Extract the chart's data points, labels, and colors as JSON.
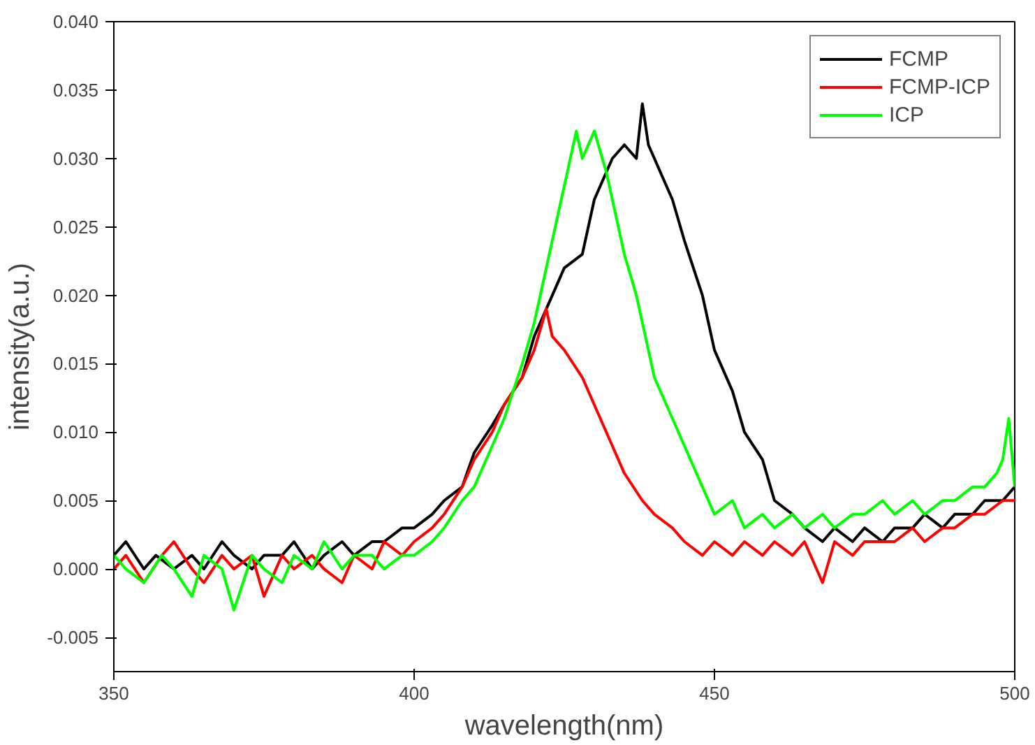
{
  "chart_data": {
    "type": "line",
    "xlabel": "wavelength(nm)",
    "ylabel": "intensity(a.u.)",
    "xlim": [
      350,
      500
    ],
    "ylim": [
      -0.0075,
      0.04
    ],
    "xticks": [
      350,
      400,
      450,
      500
    ],
    "yticks": [
      {
        "value": -0.005,
        "label": "-0.005"
      },
      {
        "value": 0,
        "label": "0.000"
      },
      {
        "value": 0.005,
        "label": "0.005"
      },
      {
        "value": 0.01,
        "label": "0.010"
      },
      {
        "value": 0.015,
        "label": "0.015"
      },
      {
        "value": 0.02,
        "label": "0.020"
      },
      {
        "value": 0.025,
        "label": "0.025"
      },
      {
        "value": 0.03,
        "label": "0.030"
      },
      {
        "value": 0.035,
        "label": "0.035"
      },
      {
        "value": 0.04,
        "label": "0.040"
      }
    ],
    "legend": "top right",
    "grid": false,
    "series": [
      {
        "name": "FCMP",
        "color": "#000000",
        "x": [
          350,
          352,
          355,
          357,
          360,
          363,
          365,
          368,
          370,
          373,
          375,
          378,
          380,
          383,
          385,
          388,
          390,
          393,
          395,
          398,
          400,
          403,
          405,
          408,
          410,
          413,
          415,
          418,
          420,
          423,
          425,
          428,
          430,
          433,
          435,
          437,
          438,
          439,
          440,
          443,
          445,
          448,
          450,
          453,
          455,
          458,
          460,
          463,
          465,
          468,
          470,
          473,
          475,
          478,
          480,
          483,
          485,
          488,
          490,
          493,
          495,
          498,
          500
        ],
        "values": [
          0.001,
          0.002,
          0.0,
          0.001,
          0.0,
          0.001,
          0.0,
          0.002,
          0.001,
          0.0,
          0.001,
          0.001,
          0.002,
          0.0,
          0.001,
          0.002,
          0.001,
          0.002,
          0.002,
          0.003,
          0.003,
          0.004,
          0.005,
          0.006,
          0.0085,
          0.0105,
          0.012,
          0.014,
          0.017,
          0.02,
          0.022,
          0.023,
          0.027,
          0.03,
          0.031,
          0.03,
          0.034,
          0.031,
          0.03,
          0.027,
          0.024,
          0.02,
          0.016,
          0.013,
          0.01,
          0.008,
          0.005,
          0.004,
          0.003,
          0.002,
          0.003,
          0.002,
          0.003,
          0.002,
          0.003,
          0.003,
          0.004,
          0.003,
          0.004,
          0.004,
          0.005,
          0.005,
          0.006
        ]
      },
      {
        "name": "FCMP-ICP",
        "color": "#ff0000",
        "x": [
          350,
          352,
          355,
          358,
          360,
          363,
          365,
          368,
          370,
          373,
          375,
          378,
          380,
          383,
          385,
          388,
          390,
          393,
          395,
          398,
          400,
          403,
          405,
          408,
          410,
          413,
          415,
          418,
          420,
          422,
          423,
          425,
          428,
          430,
          433,
          435,
          438,
          440,
          443,
          445,
          448,
          450,
          453,
          455,
          458,
          460,
          463,
          465,
          468,
          470,
          473,
          475,
          478,
          480,
          483,
          485,
          488,
          490,
          493,
          495,
          498,
          500
        ],
        "values": [
          0.0,
          0.001,
          -0.001,
          0.001,
          0.002,
          0.0,
          -0.001,
          0.001,
          0.0,
          0.001,
          -0.002,
          0.001,
          0.0,
          0.001,
          0.0,
          -0.001,
          0.001,
          0.0,
          0.002,
          0.001,
          0.002,
          0.003,
          0.004,
          0.006,
          0.008,
          0.01,
          0.012,
          0.014,
          0.016,
          0.019,
          0.017,
          0.016,
          0.014,
          0.012,
          0.009,
          0.007,
          0.005,
          0.004,
          0.003,
          0.002,
          0.001,
          0.002,
          0.001,
          0.002,
          0.001,
          0.002,
          0.001,
          0.002,
          -0.001,
          0.002,
          0.001,
          0.002,
          0.002,
          0.002,
          0.003,
          0.002,
          0.003,
          0.003,
          0.004,
          0.004,
          0.005,
          0.005
        ]
      },
      {
        "name": "ICP",
        "color": "#00ff00",
        "x": [
          350,
          352,
          355,
          358,
          360,
          363,
          365,
          368,
          370,
          373,
          375,
          378,
          380,
          383,
          385,
          388,
          390,
          393,
          395,
          398,
          400,
          403,
          405,
          408,
          410,
          413,
          415,
          418,
          420,
          423,
          425,
          427,
          428,
          430,
          432,
          433,
          435,
          437,
          440,
          443,
          445,
          448,
          450,
          453,
          455,
          458,
          460,
          463,
          465,
          468,
          470,
          473,
          475,
          478,
          480,
          483,
          485,
          488,
          490,
          493,
          495,
          497,
          498,
          499,
          500
        ],
        "values": [
          0.001,
          0.0,
          -0.001,
          0.001,
          0.0,
          -0.002,
          0.001,
          0.0,
          -0.003,
          0.001,
          0.0,
          -0.001,
          0.001,
          0.0,
          0.002,
          0.0,
          0.001,
          0.001,
          0.0,
          0.001,
          0.001,
          0.002,
          0.003,
          0.005,
          0.006,
          0.009,
          0.011,
          0.015,
          0.018,
          0.024,
          0.028,
          0.032,
          0.03,
          0.032,
          0.029,
          0.027,
          0.023,
          0.02,
          0.014,
          0.011,
          0.009,
          0.006,
          0.004,
          0.005,
          0.003,
          0.004,
          0.003,
          0.004,
          0.003,
          0.004,
          0.003,
          0.004,
          0.004,
          0.005,
          0.004,
          0.005,
          0.004,
          0.005,
          0.005,
          0.006,
          0.006,
          0.007,
          0.008,
          0.011,
          0.006
        ]
      }
    ]
  }
}
